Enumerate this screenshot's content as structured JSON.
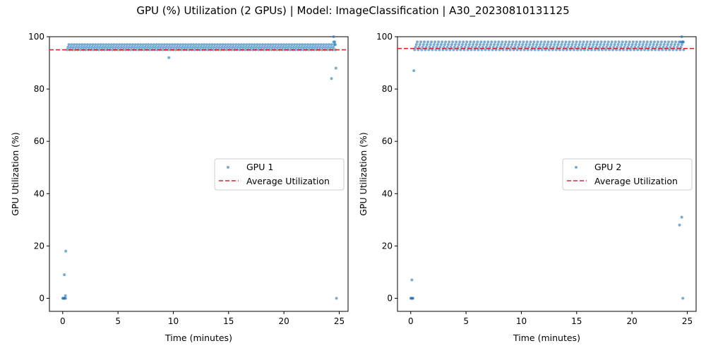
{
  "figure": {
    "title": "GPU (%) Utilization (2 GPUs) | Model: ImageClassification | A30_20230810131125"
  },
  "colors": {
    "points": "#1f77b4",
    "average_line": "#d62728"
  },
  "chart_data": [
    {
      "type": "scatter",
      "title": "",
      "xlabel": "Time (minutes)",
      "ylabel": "GPU Utilization (%)",
      "xlim": [
        -1.2,
        25.8
      ],
      "ylim": [
        -5,
        100
      ],
      "x_ticks": [
        0,
        5,
        10,
        15,
        20,
        25
      ],
      "y_ticks": [
        0,
        20,
        40,
        60,
        80,
        100
      ],
      "grid": false,
      "legend_position": "center-right",
      "series": [
        {
          "name": "GPU 1",
          "kind": "scatter",
          "dense_band": {
            "x_start": 0.4,
            "x_end": 24.7,
            "step": 0.08,
            "y_values": [
              95,
              96,
              97
            ]
          },
          "points": [
            [
              0.0,
              0
            ],
            [
              0.05,
              0
            ],
            [
              0.1,
              0
            ],
            [
              0.15,
              0
            ],
            [
              0.2,
              0
            ],
            [
              0.25,
              0
            ],
            [
              0.15,
              9
            ],
            [
              0.25,
              1
            ],
            [
              0.28,
              18
            ],
            [
              9.6,
              92
            ],
            [
              24.3,
              84
            ],
            [
              24.5,
              100
            ],
            [
              24.7,
              88
            ],
            [
              24.75,
              0
            ],
            [
              24.5,
              98
            ],
            [
              24.6,
              98
            ],
            [
              24.65,
              97
            ]
          ]
        },
        {
          "name": "Average Utilization",
          "kind": "hline",
          "y": 95
        }
      ]
    },
    {
      "type": "scatter",
      "title": "",
      "xlabel": "Time (minutes)",
      "ylabel": "GPU Utilization (%)",
      "xlim": [
        -1.2,
        25.8
      ],
      "ylim": [
        -5,
        100
      ],
      "x_ticks": [
        0,
        5,
        10,
        15,
        20,
        25
      ],
      "y_ticks": [
        0,
        20,
        40,
        60,
        80,
        100
      ],
      "grid": false,
      "legend_position": "center-right",
      "series": [
        {
          "name": "GPU 2",
          "kind": "scatter",
          "dense_band": {
            "x_start": 0.35,
            "x_end": 24.7,
            "step": 0.08,
            "y_values": [
              95,
              96,
              97,
              98
            ]
          },
          "points": [
            [
              0.0,
              0
            ],
            [
              0.05,
              0
            ],
            [
              0.1,
              0
            ],
            [
              0.15,
              0
            ],
            [
              0.2,
              0
            ],
            [
              0.1,
              7
            ],
            [
              0.28,
              87
            ],
            [
              24.3,
              28
            ],
            [
              24.5,
              31
            ],
            [
              24.6,
              0
            ],
            [
              24.5,
              100
            ],
            [
              24.4,
              98
            ],
            [
              24.55,
              98
            ],
            [
              24.65,
              98
            ]
          ]
        },
        {
          "name": "Average Utilization",
          "kind": "hline",
          "y": 95.5
        }
      ]
    }
  ]
}
